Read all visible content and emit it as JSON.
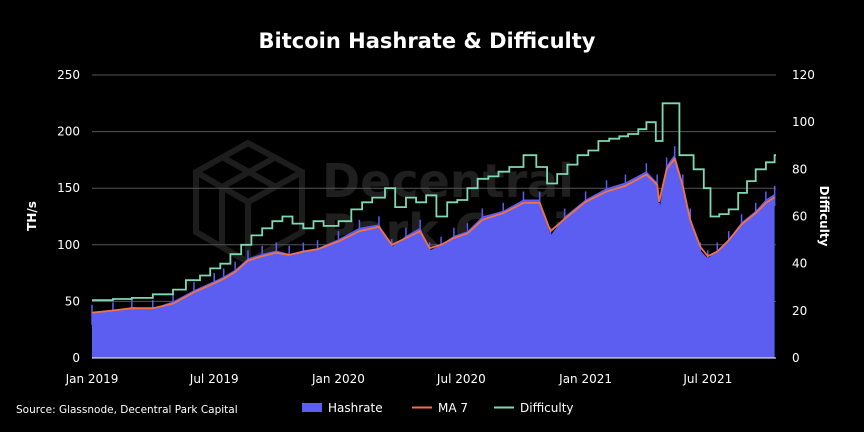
{
  "chart_data": {
    "type": "area",
    "title": "Bitcoin Hashrate & Difficulty",
    "ylabel_left": "TH/s",
    "ylabel_right": "Difficulty",
    "ylim_left": [
      0,
      250
    ],
    "ylim_right": [
      0,
      120
    ],
    "yticks_left": [
      "0",
      "50",
      "100",
      "150",
      "200",
      "250"
    ],
    "yticks_right": [
      "0",
      "20",
      "40",
      "60",
      "80",
      "100",
      "120"
    ],
    "xlim": [
      "2019-01-01",
      "2021-10-10"
    ],
    "xticks": [
      {
        "date": "2019-01-01",
        "label": "Jan 2019"
      },
      {
        "date": "2019-07-01",
        "label": "Jul 2019"
      },
      {
        "date": "2020-01-01",
        "label": "Jan 2020"
      },
      {
        "date": "2020-07-01",
        "label": "Jul 2020"
      },
      {
        "date": "2021-01-01",
        "label": "Jan 2021"
      },
      {
        "date": "2021-07-01",
        "label": "Jul 2021"
      }
    ],
    "grid": "horizontal",
    "legend_position": "bottom",
    "series": [
      {
        "name": "Hashrate",
        "kind": "area",
        "axis": "left",
        "color": "#5b5ef0",
        "points": [
          [
            "2019-01-01",
            40
          ],
          [
            "2019-02-01",
            42
          ],
          [
            "2019-03-01",
            45
          ],
          [
            "2019-04-01",
            44
          ],
          [
            "2019-05-01",
            50
          ],
          [
            "2019-06-01",
            60
          ],
          [
            "2019-07-01",
            68
          ],
          [
            "2019-07-15",
            72
          ],
          [
            "2019-08-01",
            78
          ],
          [
            "2019-08-20",
            88
          ],
          [
            "2019-09-10",
            92
          ],
          [
            "2019-10-01",
            95
          ],
          [
            "2019-10-20",
            92
          ],
          [
            "2019-11-10",
            95
          ],
          [
            "2019-12-01",
            97
          ],
          [
            "2020-01-01",
            105
          ],
          [
            "2020-02-01",
            115
          ],
          [
            "2020-03-01",
            118
          ],
          [
            "2020-03-20",
            98
          ],
          [
            "2020-04-10",
            108
          ],
          [
            "2020-05-01",
            115
          ],
          [
            "2020-05-15",
            95
          ],
          [
            "2020-06-01",
            100
          ],
          [
            "2020-06-20",
            108
          ],
          [
            "2020-07-10",
            112
          ],
          [
            "2020-08-01",
            125
          ],
          [
            "2020-09-01",
            130
          ],
          [
            "2020-10-01",
            140
          ],
          [
            "2020-10-25",
            140
          ],
          [
            "2020-11-10",
            108
          ],
          [
            "2020-12-01",
            125
          ],
          [
            "2021-01-01",
            140
          ],
          [
            "2021-02-01",
            150
          ],
          [
            "2021-03-01",
            155
          ],
          [
            "2021-04-01",
            165
          ],
          [
            "2021-04-17",
            155
          ],
          [
            "2021-04-20",
            130
          ],
          [
            "2021-05-01",
            170
          ],
          [
            "2021-05-13",
            180
          ],
          [
            "2021-05-25",
            155
          ],
          [
            "2021-06-05",
            125
          ],
          [
            "2021-06-20",
            95
          ],
          [
            "2021-07-01",
            88
          ],
          [
            "2021-07-15",
            95
          ],
          [
            "2021-08-01",
            105
          ],
          [
            "2021-08-20",
            120
          ],
          [
            "2021-09-10",
            130
          ],
          [
            "2021-09-25",
            140
          ],
          [
            "2021-10-08",
            145
          ]
        ]
      },
      {
        "name": "MA 7",
        "kind": "line",
        "axis": "left",
        "color": "#f0714a",
        "points": [
          [
            "2019-01-01",
            40
          ],
          [
            "2019-02-01",
            42
          ],
          [
            "2019-03-01",
            44
          ],
          [
            "2019-04-01",
            44
          ],
          [
            "2019-05-01",
            48
          ],
          [
            "2019-06-01",
            58
          ],
          [
            "2019-07-01",
            66
          ],
          [
            "2019-07-15",
            70
          ],
          [
            "2019-08-01",
            76
          ],
          [
            "2019-08-20",
            86
          ],
          [
            "2019-09-10",
            90
          ],
          [
            "2019-10-01",
            93
          ],
          [
            "2019-10-20",
            91
          ],
          [
            "2019-11-10",
            94
          ],
          [
            "2019-12-01",
            96
          ],
          [
            "2020-01-01",
            103
          ],
          [
            "2020-02-01",
            112
          ],
          [
            "2020-03-01",
            116
          ],
          [
            "2020-03-20",
            100
          ],
          [
            "2020-04-10",
            106
          ],
          [
            "2020-05-01",
            112
          ],
          [
            "2020-05-15",
            97
          ],
          [
            "2020-06-01",
            100
          ],
          [
            "2020-06-20",
            106
          ],
          [
            "2020-07-10",
            110
          ],
          [
            "2020-08-01",
            122
          ],
          [
            "2020-09-01",
            128
          ],
          [
            "2020-10-01",
            137
          ],
          [
            "2020-10-25",
            137
          ],
          [
            "2020-11-10",
            112
          ],
          [
            "2020-12-01",
            123
          ],
          [
            "2021-01-01",
            138
          ],
          [
            "2021-02-01",
            147
          ],
          [
            "2021-03-01",
            152
          ],
          [
            "2021-04-01",
            162
          ],
          [
            "2021-04-17",
            153
          ],
          [
            "2021-04-20",
            138
          ],
          [
            "2021-05-01",
            167
          ],
          [
            "2021-05-13",
            176
          ],
          [
            "2021-05-25",
            152
          ],
          [
            "2021-06-05",
            122
          ],
          [
            "2021-06-20",
            98
          ],
          [
            "2021-07-01",
            90
          ],
          [
            "2021-07-15",
            94
          ],
          [
            "2021-08-01",
            104
          ],
          [
            "2021-08-20",
            118
          ],
          [
            "2021-09-10",
            128
          ],
          [
            "2021-09-25",
            137
          ],
          [
            "2021-10-08",
            142
          ]
        ]
      },
      {
        "name": "Difficulty",
        "kind": "step",
        "axis": "right",
        "color": "#7fd8b4",
        "points": [
          [
            "2019-01-01",
            24.5
          ],
          [
            "2019-02-01",
            25
          ],
          [
            "2019-03-01",
            25.5
          ],
          [
            "2019-04-01",
            27
          ],
          [
            "2019-05-01",
            29
          ],
          [
            "2019-05-20",
            33
          ],
          [
            "2019-06-10",
            35
          ],
          [
            "2019-06-25",
            38
          ],
          [
            "2019-07-10",
            40
          ],
          [
            "2019-07-25",
            44
          ],
          [
            "2019-08-10",
            48
          ],
          [
            "2019-08-25",
            52
          ],
          [
            "2019-09-10",
            55
          ],
          [
            "2019-09-25",
            58
          ],
          [
            "2019-10-10",
            60
          ],
          [
            "2019-10-25",
            57
          ],
          [
            "2019-11-10",
            55
          ],
          [
            "2019-11-25",
            58
          ],
          [
            "2019-12-10",
            56
          ],
          [
            "2020-01-01",
            58
          ],
          [
            "2020-01-20",
            63
          ],
          [
            "2020-02-05",
            66
          ],
          [
            "2020-02-20",
            68
          ],
          [
            "2020-03-10",
            72
          ],
          [
            "2020-03-25",
            64
          ],
          [
            "2020-04-10",
            68
          ],
          [
            "2020-04-25",
            66
          ],
          [
            "2020-05-10",
            69
          ],
          [
            "2020-05-25",
            60
          ],
          [
            "2020-06-10",
            66
          ],
          [
            "2020-06-25",
            67
          ],
          [
            "2020-07-10",
            72
          ],
          [
            "2020-07-25",
            76
          ],
          [
            "2020-08-10",
            77
          ],
          [
            "2020-08-25",
            79
          ],
          [
            "2020-09-10",
            81
          ],
          [
            "2020-10-01",
            86
          ],
          [
            "2020-10-20",
            81
          ],
          [
            "2020-11-05",
            74
          ],
          [
            "2020-11-20",
            78
          ],
          [
            "2020-12-05",
            82
          ],
          [
            "2020-12-20",
            86
          ],
          [
            "2021-01-05",
            88
          ],
          [
            "2021-01-20",
            92
          ],
          [
            "2021-02-05",
            93
          ],
          [
            "2021-02-20",
            94
          ],
          [
            "2021-03-05",
            95
          ],
          [
            "2021-03-20",
            97
          ],
          [
            "2021-04-01",
            100
          ],
          [
            "2021-04-15",
            92
          ],
          [
            "2021-04-25",
            108
          ],
          [
            "2021-05-10",
            108
          ],
          [
            "2021-05-20",
            86
          ],
          [
            "2021-06-10",
            80
          ],
          [
            "2021-06-25",
            72
          ],
          [
            "2021-07-05",
            60
          ],
          [
            "2021-07-18",
            61
          ],
          [
            "2021-08-01",
            63
          ],
          [
            "2021-08-15",
            70
          ],
          [
            "2021-08-28",
            75
          ],
          [
            "2021-09-10",
            80
          ],
          [
            "2021-09-25",
            83
          ],
          [
            "2021-10-08",
            86
          ]
        ]
      }
    ],
    "watermark": "Decentral Park Capital",
    "source": "Source: Glassnode, Decentral Park Capital"
  }
}
